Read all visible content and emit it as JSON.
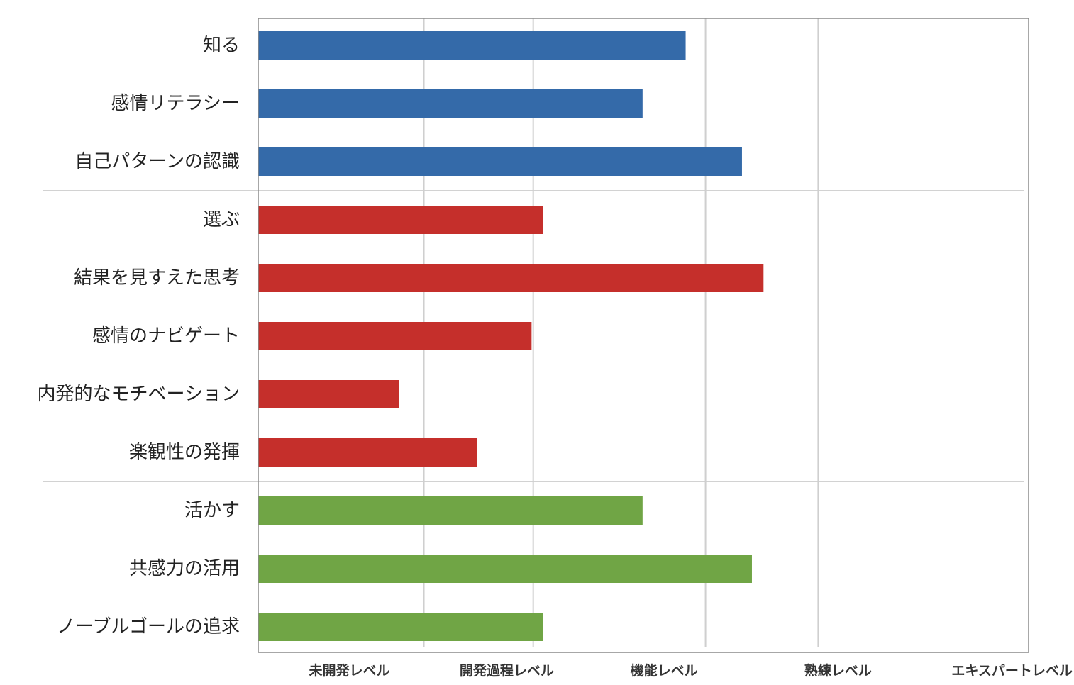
{
  "chart_data": {
    "type": "bar",
    "orientation": "horizontal",
    "title": "",
    "xlabel": "",
    "ylabel": "",
    "x_ticks": [
      {
        "label": "未開発レベル",
        "value": 0.55
      },
      {
        "label": "開発過程レベル",
        "value": 1.5
      },
      {
        "label": "機能レベル",
        "value": 2.45
      },
      {
        "label": "熟練レベル",
        "value": 3.5
      },
      {
        "label": "エキスパートレベル",
        "value": 4.55
      }
    ],
    "gridline_values": [
      1.0,
      1.66,
      2.7,
      3.38
    ],
    "xlim": [
      0,
      4.65
    ],
    "grid": true,
    "legend": "none",
    "groups": [
      {
        "color": "#346aa9",
        "items": [
          {
            "label": "知る",
            "value": 2.58
          },
          {
            "label": "感情リテラシー",
            "value": 2.32
          },
          {
            "label": "自己パターンの認識",
            "value": 2.92
          }
        ]
      },
      {
        "color": "#c52f2b",
        "items": [
          {
            "label": "選ぶ",
            "value": 1.72
          },
          {
            "label": "結果を見すえた思考",
            "value": 3.05
          },
          {
            "label": "感情のナビゲート",
            "value": 1.65
          },
          {
            "label": "内発的なモチベーション",
            "value": 0.85
          },
          {
            "label": "楽観性の発揮",
            "value": 1.32
          }
        ]
      },
      {
        "color": "#70a545",
        "items": [
          {
            "label": "活かす",
            "value": 2.32
          },
          {
            "label": "共感力の活用",
            "value": 2.98
          },
          {
            "label": "ノーブルゴールの追求",
            "value": 1.72
          }
        ]
      }
    ]
  }
}
